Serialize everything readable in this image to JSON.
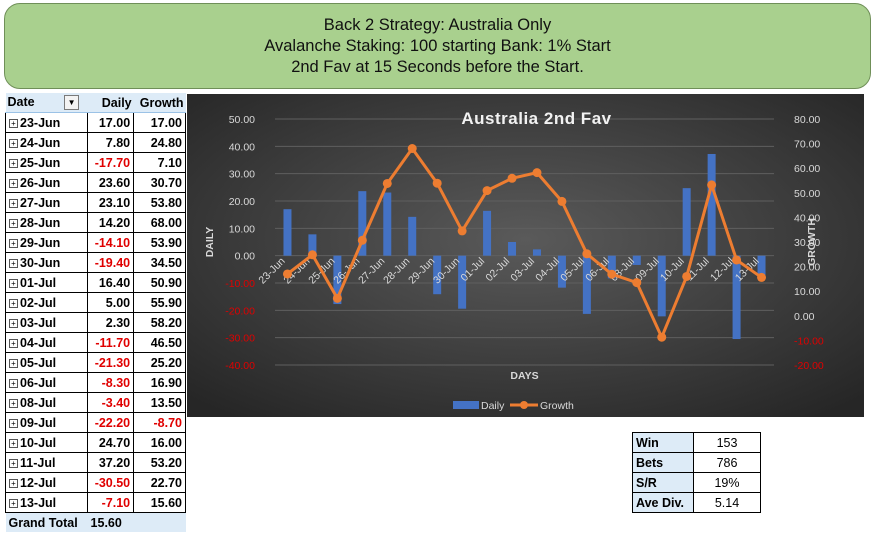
{
  "header": {
    "line1": "Back 2 Strategy: Australia Only",
    "line2": "Avalanche Staking: 100 starting Bank: 1% Start",
    "line3": "2nd Fav at 15 Seconds before the Start."
  },
  "pivot": {
    "col_date": "Date",
    "col_daily": "Daily",
    "col_growth": "Growth",
    "filter_icon": "dropdown-arrow-icon",
    "rows": [
      {
        "date": "23-Jun",
        "daily": "17.00",
        "growth": "17.00"
      },
      {
        "date": "24-Jun",
        "daily": "7.80",
        "growth": "24.80"
      },
      {
        "date": "25-Jun",
        "daily": "-17.70",
        "growth": "7.10"
      },
      {
        "date": "26-Jun",
        "daily": "23.60",
        "growth": "30.70"
      },
      {
        "date": "27-Jun",
        "daily": "23.10",
        "growth": "53.80"
      },
      {
        "date": "28-Jun",
        "daily": "14.20",
        "growth": "68.00"
      },
      {
        "date": "29-Jun",
        "daily": "-14.10",
        "growth": "53.90"
      },
      {
        "date": "30-Jun",
        "daily": "-19.40",
        "growth": "34.50"
      },
      {
        "date": "01-Jul",
        "daily": "16.40",
        "growth": "50.90"
      },
      {
        "date": "02-Jul",
        "daily": "5.00",
        "growth": "55.90"
      },
      {
        "date": "03-Jul",
        "daily": "2.30",
        "growth": "58.20"
      },
      {
        "date": "04-Jul",
        "daily": "-11.70",
        "growth": "46.50"
      },
      {
        "date": "05-Jul",
        "daily": "-21.30",
        "growth": "25.20"
      },
      {
        "date": "06-Jul",
        "daily": "-8.30",
        "growth": "16.90"
      },
      {
        "date": "08-Jul",
        "daily": "-3.40",
        "growth": "13.50"
      },
      {
        "date": "09-Jul",
        "daily": "-22.20",
        "growth": "-8.70"
      },
      {
        "date": "10-Jul",
        "daily": "24.70",
        "growth": "16.00"
      },
      {
        "date": "11-Jul",
        "daily": "37.20",
        "growth": "53.20"
      },
      {
        "date": "12-Jul",
        "daily": "-30.50",
        "growth": "22.70"
      },
      {
        "date": "13-Jul",
        "daily": "-7.10",
        "growth": "15.60"
      }
    ],
    "total_label": "Grand Total",
    "total_value": "15.60"
  },
  "stats": [
    {
      "key": "Win",
      "value": "153"
    },
    {
      "key": "Bets",
      "value": "786"
    },
    {
      "key": "S/R",
      "value": "19%"
    },
    {
      "key": "Ave Div.",
      "value": "5.14"
    }
  ],
  "chart_data": {
    "type": "bar+line",
    "title": "Australia 2nd Fav",
    "xlabel": "DAYS",
    "ylabel_left": "DAILY",
    "ylabel_right": "GROWTH",
    "ylim_left": [
      -40,
      50
    ],
    "ylim_right": [
      -20,
      80
    ],
    "left_ticks": [
      "-40.00",
      "-30.00",
      "-20.00",
      "-10.00",
      "0.00",
      "10.00",
      "20.00",
      "30.00",
      "40.00",
      "50.00"
    ],
    "right_ticks": [
      "-20.00",
      "-10.00",
      "0.00",
      "10.00",
      "20.00",
      "30.00",
      "40.00",
      "50.00",
      "60.00",
      "70.00",
      "80.00"
    ],
    "categories": [
      "23-Jun",
      "24-Jun",
      "25-Jun",
      "26-Jun",
      "27-Jun",
      "28-Jun",
      "29-Jun",
      "30-Jun",
      "01-Jul",
      "02-Jul",
      "03-Jul",
      "04-Jul",
      "05-Jul",
      "06-Jul",
      "08-Jul",
      "09-Jul",
      "10-Jul",
      "11-Jul",
      "12-Jul",
      "13-Jul"
    ],
    "series": [
      {
        "name": "Daily",
        "kind": "bar",
        "axis": "left",
        "color": "#4472c4",
        "values": [
          17.0,
          7.8,
          -17.7,
          23.6,
          23.1,
          14.2,
          -14.1,
          -19.4,
          16.4,
          5.0,
          2.3,
          -11.7,
          -21.3,
          -8.3,
          -3.4,
          -22.2,
          24.7,
          37.2,
          -30.5,
          -7.1
        ]
      },
      {
        "name": "Growth",
        "kind": "line",
        "axis": "right",
        "color": "#ed7d31",
        "values": [
          17.0,
          24.8,
          7.1,
          30.7,
          53.8,
          68.0,
          53.9,
          34.5,
          50.9,
          55.9,
          58.2,
          46.5,
          25.2,
          16.9,
          13.5,
          -8.7,
          16.0,
          53.2,
          22.7,
          15.6
        ]
      }
    ],
    "legend_position": "bottom",
    "grid": true,
    "colors": {
      "background": "#3a3a3a",
      "axis_text": "#d9d9d9",
      "negative_text": "#e00000"
    }
  }
}
